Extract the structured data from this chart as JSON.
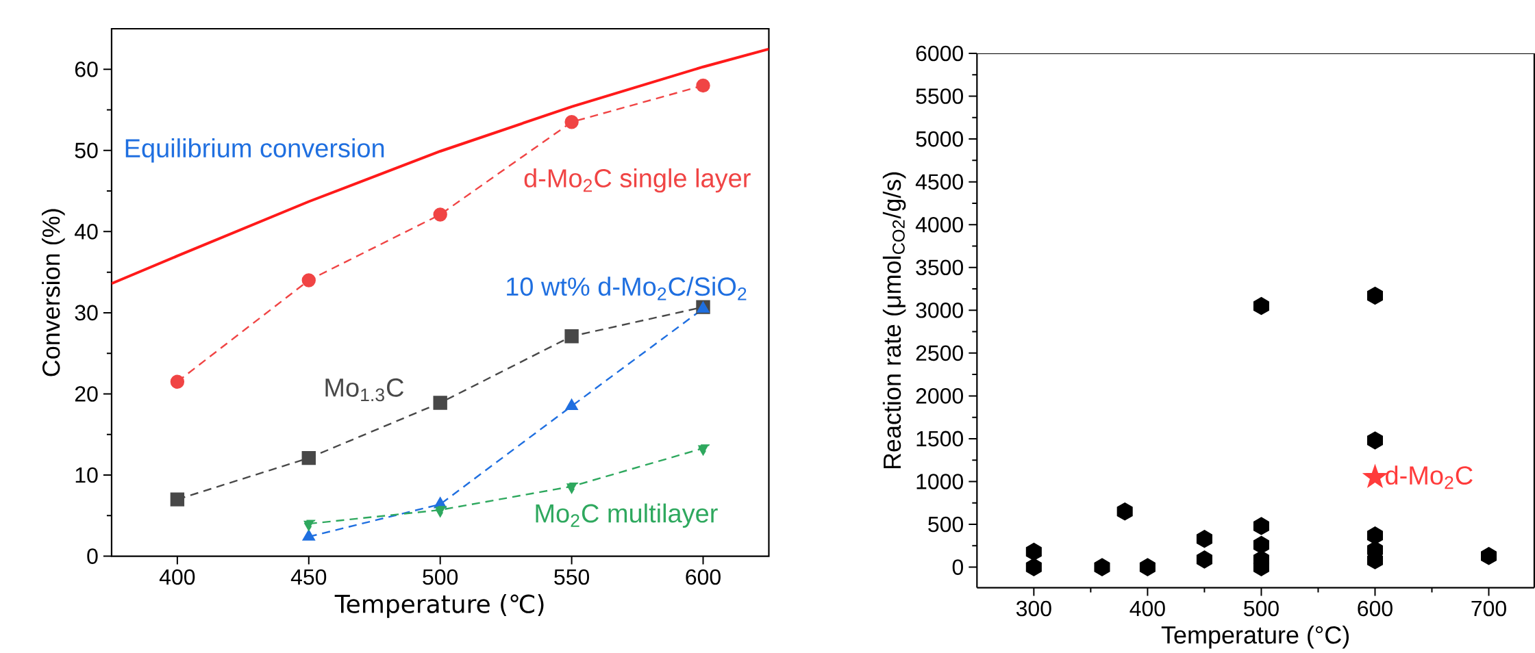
{
  "chart_data": [
    {
      "type": "line",
      "xlabel": "Temperature (℃)",
      "ylabel": "Conversion (%)",
      "xlim": [
        375,
        625
      ],
      "ylim": [
        0,
        65
      ],
      "xticks": [
        400,
        450,
        500,
        550,
        600
      ],
      "yticks": [
        0,
        10,
        20,
        30,
        40,
        50,
        60
      ],
      "grid": false,
      "annotations": [
        "Equilibrium conversion"
      ],
      "series": [
        {
          "color": "#ff1a1a",
          "x": [
            375,
            400,
            450,
            500,
            550,
            600,
            625
          ],
          "values": [
            33.6,
            37,
            43.7,
            49.9,
            55.4,
            60.3,
            62.5
          ],
          "marker": "none",
          "line_style": "solid"
        },
        {
          "name": "d-Mo$_{2}$C single layer",
          "color": "#f04444",
          "x": [
            400,
            450,
            500,
            550,
            600
          ],
          "values": [
            21.5,
            34,
            42.1,
            53.5,
            58
          ],
          "marker": "circle",
          "line_style": "dashed"
        },
        {
          "name": "Mo$_{1.3}$C",
          "color": "#484848",
          "x": [
            400,
            450,
            500,
            550,
            600
          ],
          "values": [
            7,
            12.1,
            18.9,
            27.1,
            30.7
          ],
          "marker": "square",
          "line_style": "dashed"
        },
        {
          "name": "10 wt% d-Mo$_{2}$C/SiO$_{2}$",
          "color": "#1f6fe0",
          "x": [
            450,
            500,
            550,
            600
          ],
          "values": [
            2.4,
            6.4,
            18.5,
            30.5
          ],
          "marker": "triangle",
          "line_style": "dashed"
        },
        {
          "name": "Mo$_{2}$C multilayer",
          "color": "#2ea85e",
          "x": [
            450,
            500,
            550,
            600
          ],
          "values": [
            4,
            5.7,
            8.6,
            13.3
          ],
          "marker": "triangle_down",
          "line_style": "dashed"
        }
      ]
    },
    {
      "type": "scatter",
      "xlabel": "Temperature (°C)",
      "ylabel": "Reaction rate (μmol$_{CO2}$/g/s)",
      "xlim": [
        250,
        740
      ],
      "ylim": [
        -240,
        6000
      ],
      "xticks": [
        300,
        400,
        500,
        600,
        700
      ],
      "yticks": [
        0,
        500,
        1000,
        1500,
        2000,
        2500,
        3000,
        3500,
        4000,
        4500,
        5000,
        5500,
        6000
      ],
      "grid": false,
      "series": [
        {
          "color": "#000000",
          "x": [
            300,
            300,
            360,
            380,
            400,
            450,
            450,
            500,
            500,
            500,
            500,
            500,
            600,
            600,
            600,
            600,
            600,
            700
          ],
          "values": [
            180,
            0,
            0,
            650,
            0,
            330,
            90,
            3050,
            480,
            260,
            90,
            0,
            3170,
            1480,
            370,
            200,
            80,
            130
          ]
        },
        {
          "name": "d-Mo$_{2}$C",
          "color": "#ff3b3b",
          "marker": "star",
          "x": [
            600
          ],
          "values": [
            1050
          ]
        }
      ]
    }
  ]
}
